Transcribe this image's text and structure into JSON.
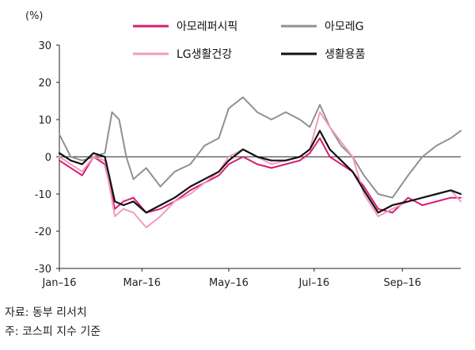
{
  "chart_data": {
    "type": "line",
    "unit_label": "(%)",
    "ylim": [
      -30,
      30
    ],
    "y_ticks": [
      30,
      20,
      10,
      0,
      -10,
      -20,
      -30
    ],
    "x_tick_labels": [
      "Jan–16",
      "Mar–16",
      "May–16",
      "Jul–16",
      "Sep–16"
    ],
    "x_range": [
      "2016-01-04",
      "2016-10-12"
    ],
    "x_tick_dates": [
      "2016-01-04",
      "2016-03-02",
      "2016-05-02",
      "2016-07-01",
      "2016-09-01"
    ],
    "legend_position": "top",
    "series": [
      {
        "name": "아모레퍼시픽",
        "color": "#d81b72",
        "x": [
          "2016-01-04",
          "2016-01-12",
          "2016-01-20",
          "2016-01-28",
          "2016-02-05",
          "2016-02-12",
          "2016-02-18",
          "2016-02-25",
          "2016-03-05",
          "2016-03-15",
          "2016-03-25",
          "2016-04-05",
          "2016-04-15",
          "2016-04-25",
          "2016-05-02",
          "2016-05-12",
          "2016-05-22",
          "2016-06-01",
          "2016-06-11",
          "2016-06-21",
          "2016-06-28",
          "2016-07-05",
          "2016-07-12",
          "2016-07-20",
          "2016-07-28",
          "2016-08-05",
          "2016-08-15",
          "2016-08-25",
          "2016-09-05",
          "2016-09-15",
          "2016-09-25",
          "2016-10-05",
          "2016-10-12"
        ],
        "y": [
          -1,
          -3,
          -5,
          0,
          -2,
          -14,
          -12,
          -11,
          -15,
          -14,
          -12,
          -9,
          -7,
          -5,
          -2,
          0,
          -2,
          -3,
          -2,
          -1,
          1,
          5,
          0,
          -2,
          -4,
          -8,
          -14,
          -15,
          -11,
          -13,
          -12,
          -11,
          -11
        ]
      },
      {
        "name": "아모레G",
        "color": "#909090",
        "x": [
          "2016-01-04",
          "2016-01-12",
          "2016-01-20",
          "2016-01-28",
          "2016-02-05",
          "2016-02-10",
          "2016-02-15",
          "2016-02-20",
          "2016-02-25",
          "2016-03-05",
          "2016-03-15",
          "2016-03-25",
          "2016-04-05",
          "2016-04-15",
          "2016-04-25",
          "2016-05-02",
          "2016-05-12",
          "2016-05-22",
          "2016-06-01",
          "2016-06-11",
          "2016-06-21",
          "2016-06-28",
          "2016-07-05",
          "2016-07-12",
          "2016-07-20",
          "2016-07-28",
          "2016-08-05",
          "2016-08-15",
          "2016-08-25",
          "2016-09-05",
          "2016-09-15",
          "2016-09-25",
          "2016-10-05",
          "2016-10-12"
        ],
        "y": [
          6,
          0,
          -1,
          0,
          1,
          12,
          10,
          0,
          -6,
          -3,
          -8,
          -4,
          -2,
          3,
          5,
          13,
          16,
          12,
          10,
          12,
          10,
          8,
          14,
          8,
          3,
          0,
          -5,
          -10,
          -11,
          -5,
          0,
          3,
          5,
          7
        ]
      },
      {
        "name": "LG생활건강",
        "color": "#f29bbf",
        "x": [
          "2016-01-04",
          "2016-01-12",
          "2016-01-20",
          "2016-01-28",
          "2016-02-05",
          "2016-02-12",
          "2016-02-18",
          "2016-02-25",
          "2016-03-05",
          "2016-03-15",
          "2016-03-25",
          "2016-04-05",
          "2016-04-15",
          "2016-04-25",
          "2016-05-02",
          "2016-05-12",
          "2016-05-22",
          "2016-06-01",
          "2016-06-11",
          "2016-06-21",
          "2016-06-28",
          "2016-07-05",
          "2016-07-12",
          "2016-07-20",
          "2016-07-28",
          "2016-08-05",
          "2016-08-15",
          "2016-08-25",
          "2016-09-05",
          "2016-09-15",
          "2016-09-25",
          "2016-10-05",
          "2016-10-12"
        ],
        "y": [
          0,
          -2,
          -4,
          0,
          -1,
          -16,
          -14,
          -15,
          -19,
          -16,
          -12,
          -10,
          -7,
          -4,
          0,
          2,
          0,
          -2,
          -1,
          0,
          2,
          12,
          8,
          4,
          0,
          -10,
          -16,
          -14,
          -12,
          -11,
          -10,
          -9,
          -12
        ]
      },
      {
        "name": "생활용품",
        "color": "#111111",
        "x": [
          "2016-01-04",
          "2016-01-12",
          "2016-01-20",
          "2016-01-28",
          "2016-02-05",
          "2016-02-12",
          "2016-02-18",
          "2016-02-25",
          "2016-03-05",
          "2016-03-15",
          "2016-03-25",
          "2016-04-05",
          "2016-04-15",
          "2016-04-25",
          "2016-05-02",
          "2016-05-12",
          "2016-05-22",
          "2016-06-01",
          "2016-06-11",
          "2016-06-21",
          "2016-06-28",
          "2016-07-05",
          "2016-07-12",
          "2016-07-20",
          "2016-07-28",
          "2016-08-05",
          "2016-08-15",
          "2016-08-25",
          "2016-09-05",
          "2016-09-15",
          "2016-09-25",
          "2016-10-05",
          "2016-10-12"
        ],
        "y": [
          1,
          -1,
          -2,
          1,
          0,
          -12,
          -13,
          -12,
          -15,
          -13,
          -11,
          -8,
          -6,
          -4,
          -1,
          2,
          0,
          -1,
          -1,
          0,
          2,
          7,
          2,
          -1,
          -4,
          -9,
          -15,
          -13,
          -12,
          -11,
          -10,
          -9,
          -10
        ]
      }
    ]
  },
  "footer": {
    "source": "자료: 동부 리서치",
    "note": "주: 코스피 지수 기준"
  }
}
